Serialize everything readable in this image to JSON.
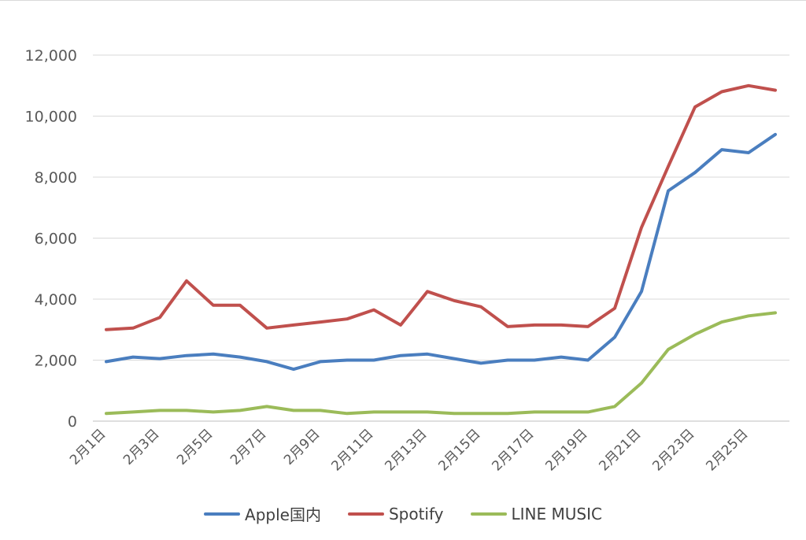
{
  "chart_data": {
    "type": "line",
    "title": "",
    "xlabel": "",
    "ylabel": "",
    "categories": [
      "2月1日",
      "2月2日",
      "2月3日",
      "2月4日",
      "2月5日",
      "2月6日",
      "2月7日",
      "2月8日",
      "2月9日",
      "2月10日",
      "2月11日",
      "2月12日",
      "2月13日",
      "2月14日",
      "2月15日",
      "2月16日",
      "2月17日",
      "2月18日",
      "2月19日",
      "2月20日",
      "2月21日",
      "2月22日",
      "2月23日",
      "2月24日",
      "2月25日",
      "2月26日"
    ],
    "tick_labels": [
      "2月1日",
      "2月3日",
      "2月5日",
      "2月7日",
      "2月9日",
      "2月11日",
      "2月13日",
      "2月15日",
      "2月17日",
      "2月19日",
      "2月21日",
      "2月23日",
      "2月25日"
    ],
    "ylim": [
      0,
      12000
    ],
    "yticks": [
      0,
      2000,
      4000,
      6000,
      8000,
      10000,
      12000
    ],
    "ytick_labels": [
      "0",
      "2,000",
      "4,000",
      "6,000",
      "8,000",
      "10,000",
      "12,000"
    ],
    "grid": true,
    "legend_position": "bottom",
    "series": [
      {
        "name": "Apple国内",
        "color": "#4a7ebf",
        "values": [
          1950,
          2100,
          2050,
          2150,
          2200,
          2100,
          1950,
          1700,
          1950,
          2000,
          2000,
          2150,
          2200,
          2050,
          1900,
          2000,
          2000,
          2100,
          2000,
          2750,
          4250,
          7550,
          8150,
          8900,
          8800,
          9400
        ]
      },
      {
        "name": "Spotify",
        "color": "#c0504d",
        "values": [
          3000,
          3050,
          3400,
          4600,
          3800,
          3800,
          3050,
          3150,
          3250,
          3350,
          3650,
          3150,
          4250,
          3950,
          3750,
          3100,
          3150,
          3150,
          3100,
          3700,
          6350,
          8350,
          10300,
          10800,
          11000,
          10850
        ]
      },
      {
        "name": "LINE MUSIC",
        "color": "#9bbb59",
        "values": [
          250,
          300,
          350,
          350,
          300,
          350,
          480,
          350,
          350,
          250,
          300,
          300,
          300,
          250,
          250,
          250,
          300,
          300,
          300,
          480,
          1250,
          2350,
          2850,
          3250,
          3450,
          3550
        ]
      }
    ]
  }
}
